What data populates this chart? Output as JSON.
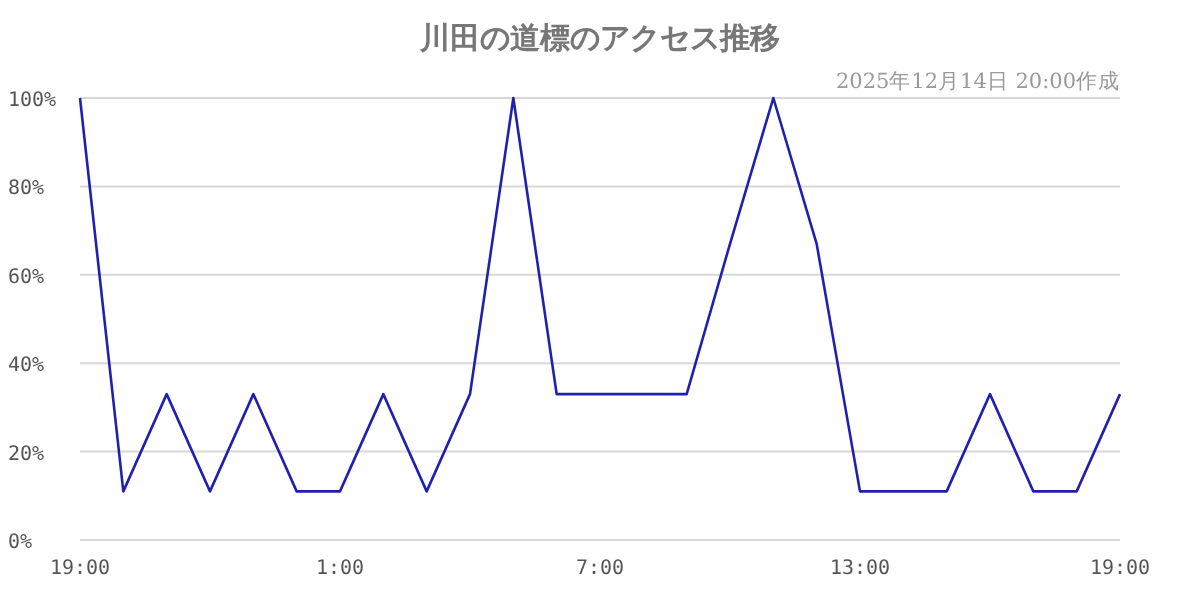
{
  "chart_data": {
    "type": "line",
    "title": "川田の道標のアクセス推移",
    "subtitle": "2025年12月14日 20:00作成",
    "categories": [
      "19:00",
      null,
      null,
      null,
      null,
      null,
      "1:00",
      null,
      null,
      null,
      null,
      null,
      "7:00",
      null,
      null,
      null,
      null,
      null,
      "13:00",
      null,
      null,
      null,
      null,
      null,
      "19:00"
    ],
    "values": [
      100,
      11,
      33,
      11,
      33,
      11,
      11,
      33,
      11,
      33,
      100,
      33,
      33,
      33,
      33,
      67,
      100,
      67,
      11,
      11,
      11,
      33,
      11,
      11,
      33
    ],
    "color": "#2020b0",
    "ylim": [
      0,
      100
    ],
    "yticks": [
      {
        "value": 0,
        "label": "0%"
      },
      {
        "value": 20,
        "label": "20%"
      },
      {
        "value": 40,
        "label": "40%"
      },
      {
        "value": 60,
        "label": "60%"
      },
      {
        "value": 80,
        "label": "80%"
      },
      {
        "value": 100,
        "label": "100%"
      }
    ],
    "grid": "y",
    "marker": "none"
  }
}
